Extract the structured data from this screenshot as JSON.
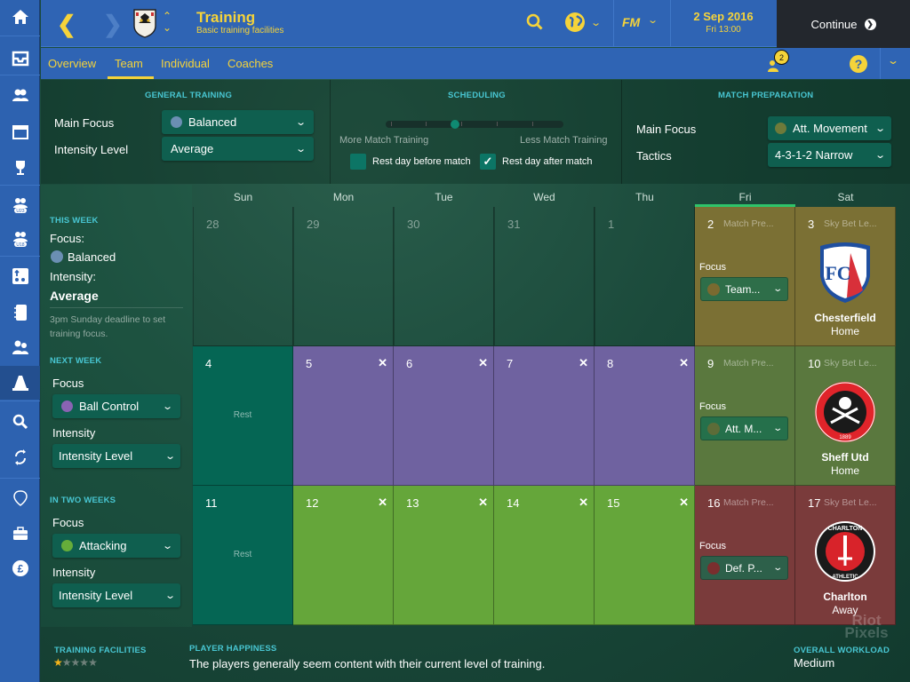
{
  "header": {
    "title": "Training",
    "subtitle": "Basic training facilities",
    "date": "2 Sep 2016",
    "time": "Fri 13:00",
    "continue_label": "Continue",
    "fm_label": "FM",
    "notification_count": "2"
  },
  "tabs": [
    {
      "label": "Overview"
    },
    {
      "label": "Team",
      "active": true
    },
    {
      "label": "Individual"
    },
    {
      "label": "Coaches"
    }
  ],
  "sidebar": {
    "items": [
      "home",
      "inbox",
      "squad",
      "schedule",
      "competitions",
      "u23",
      "u18",
      "tactics",
      "notebook",
      "staff",
      "training",
      "scouting",
      "transfers",
      "club-vision",
      "club-info",
      "finances"
    ],
    "active": "training"
  },
  "general_training": {
    "heading": "GENERAL TRAINING",
    "main_focus_label": "Main Focus",
    "main_focus_value": "Balanced",
    "main_focus_color": "#6b8fb3",
    "intensity_label": "Intensity Level",
    "intensity_value": "Average"
  },
  "scheduling": {
    "heading": "SCHEDULING",
    "left_label": "More Match Training",
    "right_label": "Less Match Training",
    "slider_steps": 5,
    "slider_position": 3,
    "rest_before_label": "Rest day before match",
    "rest_before_checked": false,
    "rest_after_label": "Rest day after match",
    "rest_after_checked": true
  },
  "match_preparation": {
    "heading": "MATCH PREPARATION",
    "main_focus_label": "Main Focus",
    "main_focus_value": "Att. Movement",
    "main_focus_color": "#6e7a3a",
    "tactics_label": "Tactics",
    "tactics_value": "4-3-1-2 Narrow"
  },
  "weeks": {
    "this_week": {
      "heading": "THIS WEEK",
      "focus_label": "Focus:",
      "focus_value": "Balanced",
      "focus_color": "#6b8fb3",
      "intensity_label": "Intensity:",
      "intensity_value": "Average",
      "note": "3pm Sunday deadline to set training focus."
    },
    "next_week": {
      "heading": "NEXT WEEK",
      "focus_label": "Focus",
      "focus_value": "Ball Control",
      "focus_color": "#8a63b3",
      "intensity_label": "Intensity",
      "intensity_value": "Intensity Level"
    },
    "two_weeks": {
      "heading": "IN TWO WEEKS",
      "focus_label": "Focus",
      "focus_value": "Attacking",
      "focus_color": "#66ad3a",
      "intensity_label": "Intensity",
      "intensity_value": "Intensity Level"
    }
  },
  "calendar": {
    "days": [
      "Sun",
      "Mon",
      "Tue",
      "Wed",
      "Thu",
      "Fri",
      "Sat"
    ],
    "today_index": 5,
    "weeks": [
      [
        {
          "date": "28"
        },
        {
          "date": "29"
        },
        {
          "date": "30"
        },
        {
          "date": "31"
        },
        {
          "date": "1"
        },
        {
          "date": "2",
          "type": "prep",
          "label": "Match Pre...",
          "focus_label": "Focus",
          "focus": "Team...",
          "focus_color": "#7a6a30",
          "bg": "#7b7034"
        },
        {
          "date": "3",
          "type": "match",
          "label": "Sky Bet Le...",
          "opponent": "Chesterfield",
          "venue": "Home",
          "crest": "chesterfield",
          "bg": "#7b7034"
        }
      ],
      [
        {
          "date": "4",
          "type": "rest",
          "rest_label": "Rest",
          "bg": "#056654"
        },
        {
          "date": "5",
          "type": "training",
          "bg": "#6f62a0"
        },
        {
          "date": "6",
          "type": "training",
          "bg": "#6f62a0"
        },
        {
          "date": "7",
          "type": "training",
          "bg": "#6f62a0"
        },
        {
          "date": "8",
          "type": "training",
          "bg": "#6f62a0"
        },
        {
          "date": "9",
          "type": "prep",
          "label": "Match Pre...",
          "focus_label": "Focus",
          "focus": "Att. M...",
          "focus_color": "#5d6c38",
          "bg": "#5a783e"
        },
        {
          "date": "10",
          "type": "match",
          "label": "Sky Bet Le...",
          "opponent": "Sheff Utd",
          "venue": "Home",
          "crest": "sheffield",
          "bg": "#5a783e"
        }
      ],
      [
        {
          "date": "11",
          "type": "rest",
          "rest_label": "Rest",
          "bg": "#056654"
        },
        {
          "date": "12",
          "type": "training",
          "bg": "#65a63a"
        },
        {
          "date": "13",
          "type": "training",
          "bg": "#65a63a"
        },
        {
          "date": "14",
          "type": "training",
          "bg": "#65a63a"
        },
        {
          "date": "15",
          "type": "training",
          "bg": "#65a63a"
        },
        {
          "date": "16",
          "type": "prep",
          "label": "Match Pre...",
          "focus_label": "Focus",
          "focus": "Def. P...",
          "focus_color": "#7a2e2e",
          "bg": "#7a3b3b"
        },
        {
          "date": "17",
          "type": "match",
          "label": "Sky Bet Le...",
          "opponent": "Charlton",
          "venue": "Away",
          "crest": "charlton",
          "bg": "#7a3b3b"
        }
      ]
    ]
  },
  "footer": {
    "facilities_heading": "TRAINING FACILITIES",
    "facilities_stars": 1,
    "facilities_max": 5,
    "happiness_heading": "PLAYER HAPPINESS",
    "happiness_text": "The players generally seem content with their current level of training.",
    "workload_heading": "OVERALL WORKLOAD",
    "workload_value": "Medium"
  },
  "watermark": "Riot Pixels"
}
